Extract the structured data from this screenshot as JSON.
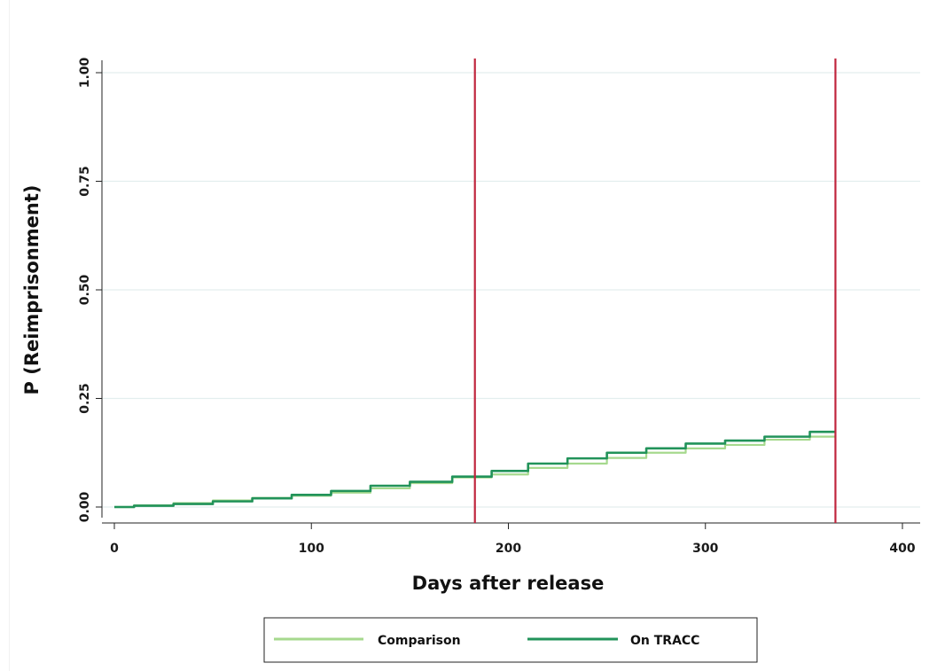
{
  "chart_data": {
    "type": "line",
    "title": "",
    "xlabel": "Days after release",
    "ylabel": "P (Reimprisonment)",
    "xlim": [
      0,
      400
    ],
    "ylim": [
      0,
      1
    ],
    "x_ticks": [
      "0",
      "100",
      "200",
      "300",
      "400"
    ],
    "y_ticks": [
      "0.00",
      "0.25",
      "0.50",
      "0.75",
      "1.00"
    ],
    "grid": "horizontal",
    "legend_position": "bottom",
    "reference_lines_x": [
      183,
      366
    ],
    "reference_line_color": "#c0253d",
    "series": [
      {
        "name": "Comparison",
        "color": "#a6d98e",
        "x": [
          0,
          20,
          40,
          60,
          80,
          100,
          120,
          140,
          160,
          183,
          200,
          220,
          240,
          260,
          280,
          300,
          320,
          340,
          366
        ],
        "y": [
          0.0,
          0.004,
          0.009,
          0.015,
          0.021,
          0.026,
          0.033,
          0.043,
          0.055,
          0.068,
          0.075,
          0.09,
          0.1,
          0.113,
          0.125,
          0.135,
          0.143,
          0.155,
          0.162
        ]
      },
      {
        "name": "On TRACC",
        "color": "#22935a",
        "x": [
          0,
          20,
          40,
          60,
          80,
          100,
          120,
          140,
          160,
          183,
          200,
          220,
          240,
          260,
          280,
          300,
          320,
          340,
          366
        ],
        "y": [
          0.0,
          0.003,
          0.007,
          0.013,
          0.02,
          0.028,
          0.037,
          0.049,
          0.058,
          0.07,
          0.083,
          0.1,
          0.112,
          0.125,
          0.135,
          0.146,
          0.153,
          0.162,
          0.173
        ]
      }
    ]
  }
}
